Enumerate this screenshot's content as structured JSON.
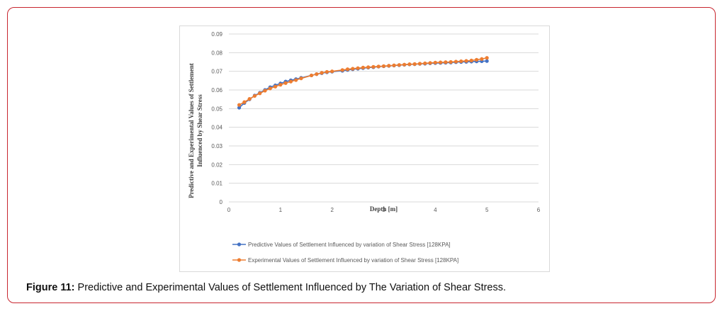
{
  "caption": {
    "label": "Figure 11:",
    "text": "Predictive and Experimental Values of Settlement Influenced by The Variation of Shear Stress."
  },
  "chart_data": {
    "type": "line",
    "xlabel": "Depth [m]",
    "ylabel_line1": "Predictive and Experimental Values of Settlement",
    "ylabel_line2": "Influenced by Shear Stress",
    "xlim": [
      0,
      6
    ],
    "ylim": [
      0,
      0.09
    ],
    "x_ticks": [
      0,
      1,
      2,
      3,
      4,
      5,
      6
    ],
    "x_tick_labels": [
      "0",
      "1",
      "2",
      "3",
      "4",
      "5",
      "6"
    ],
    "y_ticks": [
      0,
      0.01,
      0.02,
      0.03,
      0.04,
      0.05,
      0.06,
      0.07,
      0.08,
      0.09
    ],
    "y_tick_labels": [
      "0",
      "0.01",
      "0.02",
      "0.03",
      "0.04",
      "0.05",
      "0.06",
      "0.07",
      "0.08",
      "0.09"
    ],
    "grid": "horizontal",
    "legend_position": "bottom",
    "x": [
      0.2,
      0.3,
      0.4,
      0.5,
      0.6,
      0.7,
      0.8,
      0.9,
      1.0,
      1.1,
      1.2,
      1.3,
      1.4,
      1.6,
      1.7,
      1.8,
      1.9,
      2.0,
      2.2,
      2.3,
      2.4,
      2.5,
      2.6,
      2.7,
      2.8,
      2.9,
      3.0,
      3.1,
      3.2,
      3.3,
      3.4,
      3.5,
      3.6,
      3.7,
      3.8,
      3.9,
      4.0,
      4.1,
      4.2,
      4.3,
      4.4,
      4.5,
      4.6,
      4.7,
      4.8,
      4.9,
      5.0
    ],
    "series": [
      {
        "name": "Predictive Values of Settlement Influenced by variation of Shear Stress [128KPA]",
        "color": "#4472c4",
        "values": [
          0.0505,
          0.053,
          0.055,
          0.057,
          0.0585,
          0.06,
          0.0615,
          0.0625,
          0.0635,
          0.0645,
          0.0652,
          0.0658,
          0.0665,
          0.0678,
          0.0685,
          0.069,
          0.0695,
          0.0698,
          0.0703,
          0.0707,
          0.0711,
          0.0714,
          0.0717,
          0.072,
          0.0722,
          0.0725,
          0.0727,
          0.0729,
          0.0731,
          0.0733,
          0.0735,
          0.0737,
          0.0738,
          0.074,
          0.0741,
          0.0743,
          0.0744,
          0.0745,
          0.0746,
          0.0747,
          0.0749,
          0.075,
          0.0751,
          0.0752,
          0.0753,
          0.0754,
          0.0755
        ]
      },
      {
        "name": "Experimental  Values of Settlement Influenced by variation of Shear Stress [128KPA]",
        "color": "#ed7d31",
        "values": [
          0.052,
          0.0535,
          0.0552,
          0.0568,
          0.0582,
          0.0596,
          0.0608,
          0.0618,
          0.0628,
          0.0637,
          0.0645,
          0.0653,
          0.0662,
          0.0678,
          0.0685,
          0.0692,
          0.0697,
          0.07,
          0.0707,
          0.0711,
          0.0714,
          0.0717,
          0.072,
          0.0722,
          0.0724,
          0.0726,
          0.0728,
          0.073,
          0.0732,
          0.0734,
          0.0736,
          0.0738,
          0.0739,
          0.0741,
          0.0743,
          0.0745,
          0.0747,
          0.0748,
          0.0749,
          0.075,
          0.0752,
          0.0754,
          0.0756,
          0.0758,
          0.0762,
          0.0766,
          0.0772
        ]
      }
    ]
  }
}
